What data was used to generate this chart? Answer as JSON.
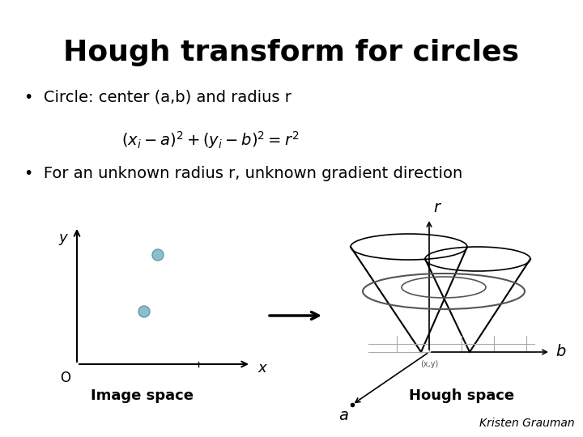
{
  "title": "Hough transform for circles",
  "bullet1": "Circle: center (a,b) and radius r",
  "bullet2": "For an unknown radius r, unknown gradient direction",
  "label_image_space": "Image space",
  "label_hough_space": "Hough space",
  "credit": "Kristen Grauman",
  "bg_color": "#ffffff",
  "text_color": "#000000",
  "dot_color": "#8bbfcc",
  "dot_edge_color": "#6699aa",
  "title_fontsize": 26,
  "bullet_fontsize": 14,
  "label_fontsize": 13,
  "credit_fontsize": 10
}
